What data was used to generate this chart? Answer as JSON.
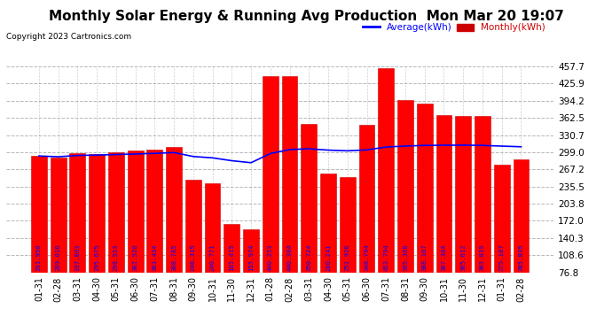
{
  "title": "Monthly Solar Energy & Running Avg Production  Mon Mar 20 19:07",
  "copyright": "Copyright 2023 Cartronics.com",
  "categories": [
    "01-31",
    "02-28",
    "03-31",
    "04-30",
    "05-31",
    "06-30",
    "07-31",
    "08-31",
    "09-30",
    "10-31",
    "11-30",
    "12-31",
    "01-28",
    "02-28",
    "03-31",
    "04-30",
    "05-31",
    "06-30",
    "07-31",
    "08-31",
    "09-30",
    "10-31",
    "11-30",
    "12-31",
    "01-31",
    "02-28"
  ],
  "monthly_values": [
    291.95,
    289.016,
    297.803,
    295.675,
    298.553,
    302.52,
    303.434,
    308.785,
    248.315,
    240.771,
    165.415,
    155.974,
    440.253,
    440.384,
    350.724,
    260.241,
    252.926,
    348.794,
    453.794,
    395.368,
    388.167,
    367.384,
    365.612,
    365.835,
    275.187,
    285.835
  ],
  "avg_values": [
    291.95,
    290.48,
    292.92,
    293.61,
    294.61,
    295.64,
    296.79,
    298.26,
    291.0,
    288.5,
    283.2,
    279.5,
    296.5,
    303.8,
    305.2,
    302.8,
    301.5,
    303.2,
    308.5,
    310.3,
    311.5,
    311.8,
    312.0,
    311.5,
    310.2,
    309.0
  ],
  "bar_color": "#FF0000",
  "bar_edge_color": "#CC0000",
  "avg_line_color": "#0000FF",
  "background_color": "#FFFFFF",
  "title_color": "#000000",
  "copyright_color": "#000000",
  "avg_label_color": "#0000FF",
  "monthly_label_color": "#CC0000",
  "value_text_color": "#0000FF",
  "ytick_labels": [
    "76.8",
    "108.6",
    "140.3",
    "172.0",
    "203.8",
    "235.5",
    "267.2",
    "299.0",
    "330.7",
    "362.5",
    "394.2",
    "425.9",
    "457.7"
  ],
  "ylim": [
    76.8,
    457.7
  ],
  "grid_color": "#888888",
  "title_fontsize": 11,
  "tick_fontsize": 7.5,
  "value_fontsize": 5.2
}
